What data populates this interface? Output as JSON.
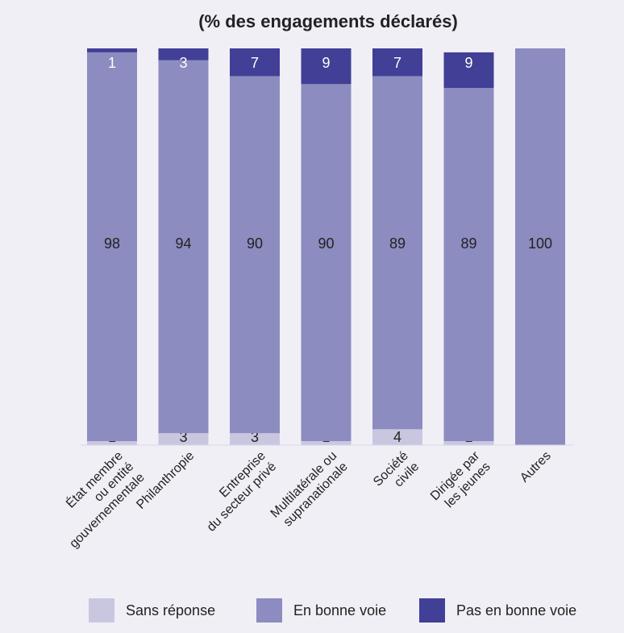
{
  "chart_data": {
    "type": "bar",
    "stacked": true,
    "title": "(% des engagements déclarés)",
    "categories": [
      [
        "État membre",
        "ou entité",
        "gouvernementale"
      ],
      [
        "Philanthropie"
      ],
      [
        "Entreprise",
        "du secteur privé"
      ],
      [
        "Multilatérale ou",
        "supranationale"
      ],
      [
        "Société",
        "civile"
      ],
      [
        "Dirigée par",
        "les jeunes"
      ],
      [
        "Autres"
      ]
    ],
    "series": [
      {
        "name": "Sans réponse",
        "values": [
          1,
          3,
          3,
          1,
          4,
          1,
          0
        ],
        "color": "#c9c7e0"
      },
      {
        "name": "En bonne voie",
        "values": [
          98,
          94,
          90,
          90,
          89,
          89,
          100
        ],
        "color": "#8d8cc0"
      },
      {
        "name": "Pas en bonne voie",
        "values": [
          1,
          3,
          7,
          9,
          7,
          9,
          0
        ],
        "color": "#423f97"
      }
    ],
    "ylim": [
      0,
      100
    ],
    "legend_position": "bottom"
  }
}
